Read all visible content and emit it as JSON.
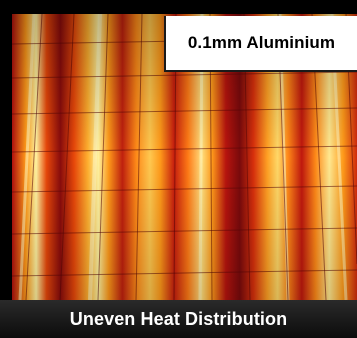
{
  "image": {
    "label": "0.1mm Aluminium",
    "caption": "Uneven Heat Distribution",
    "scene": "thermal-image",
    "colors": {
      "hot": "#fff2a0",
      "warm": "#ff9a1a",
      "mid": "#e8480a",
      "cool": "#b0100e",
      "dark": "#6a0a0c",
      "caption_bg": "#141414",
      "label_bg": "#ffffff"
    }
  }
}
